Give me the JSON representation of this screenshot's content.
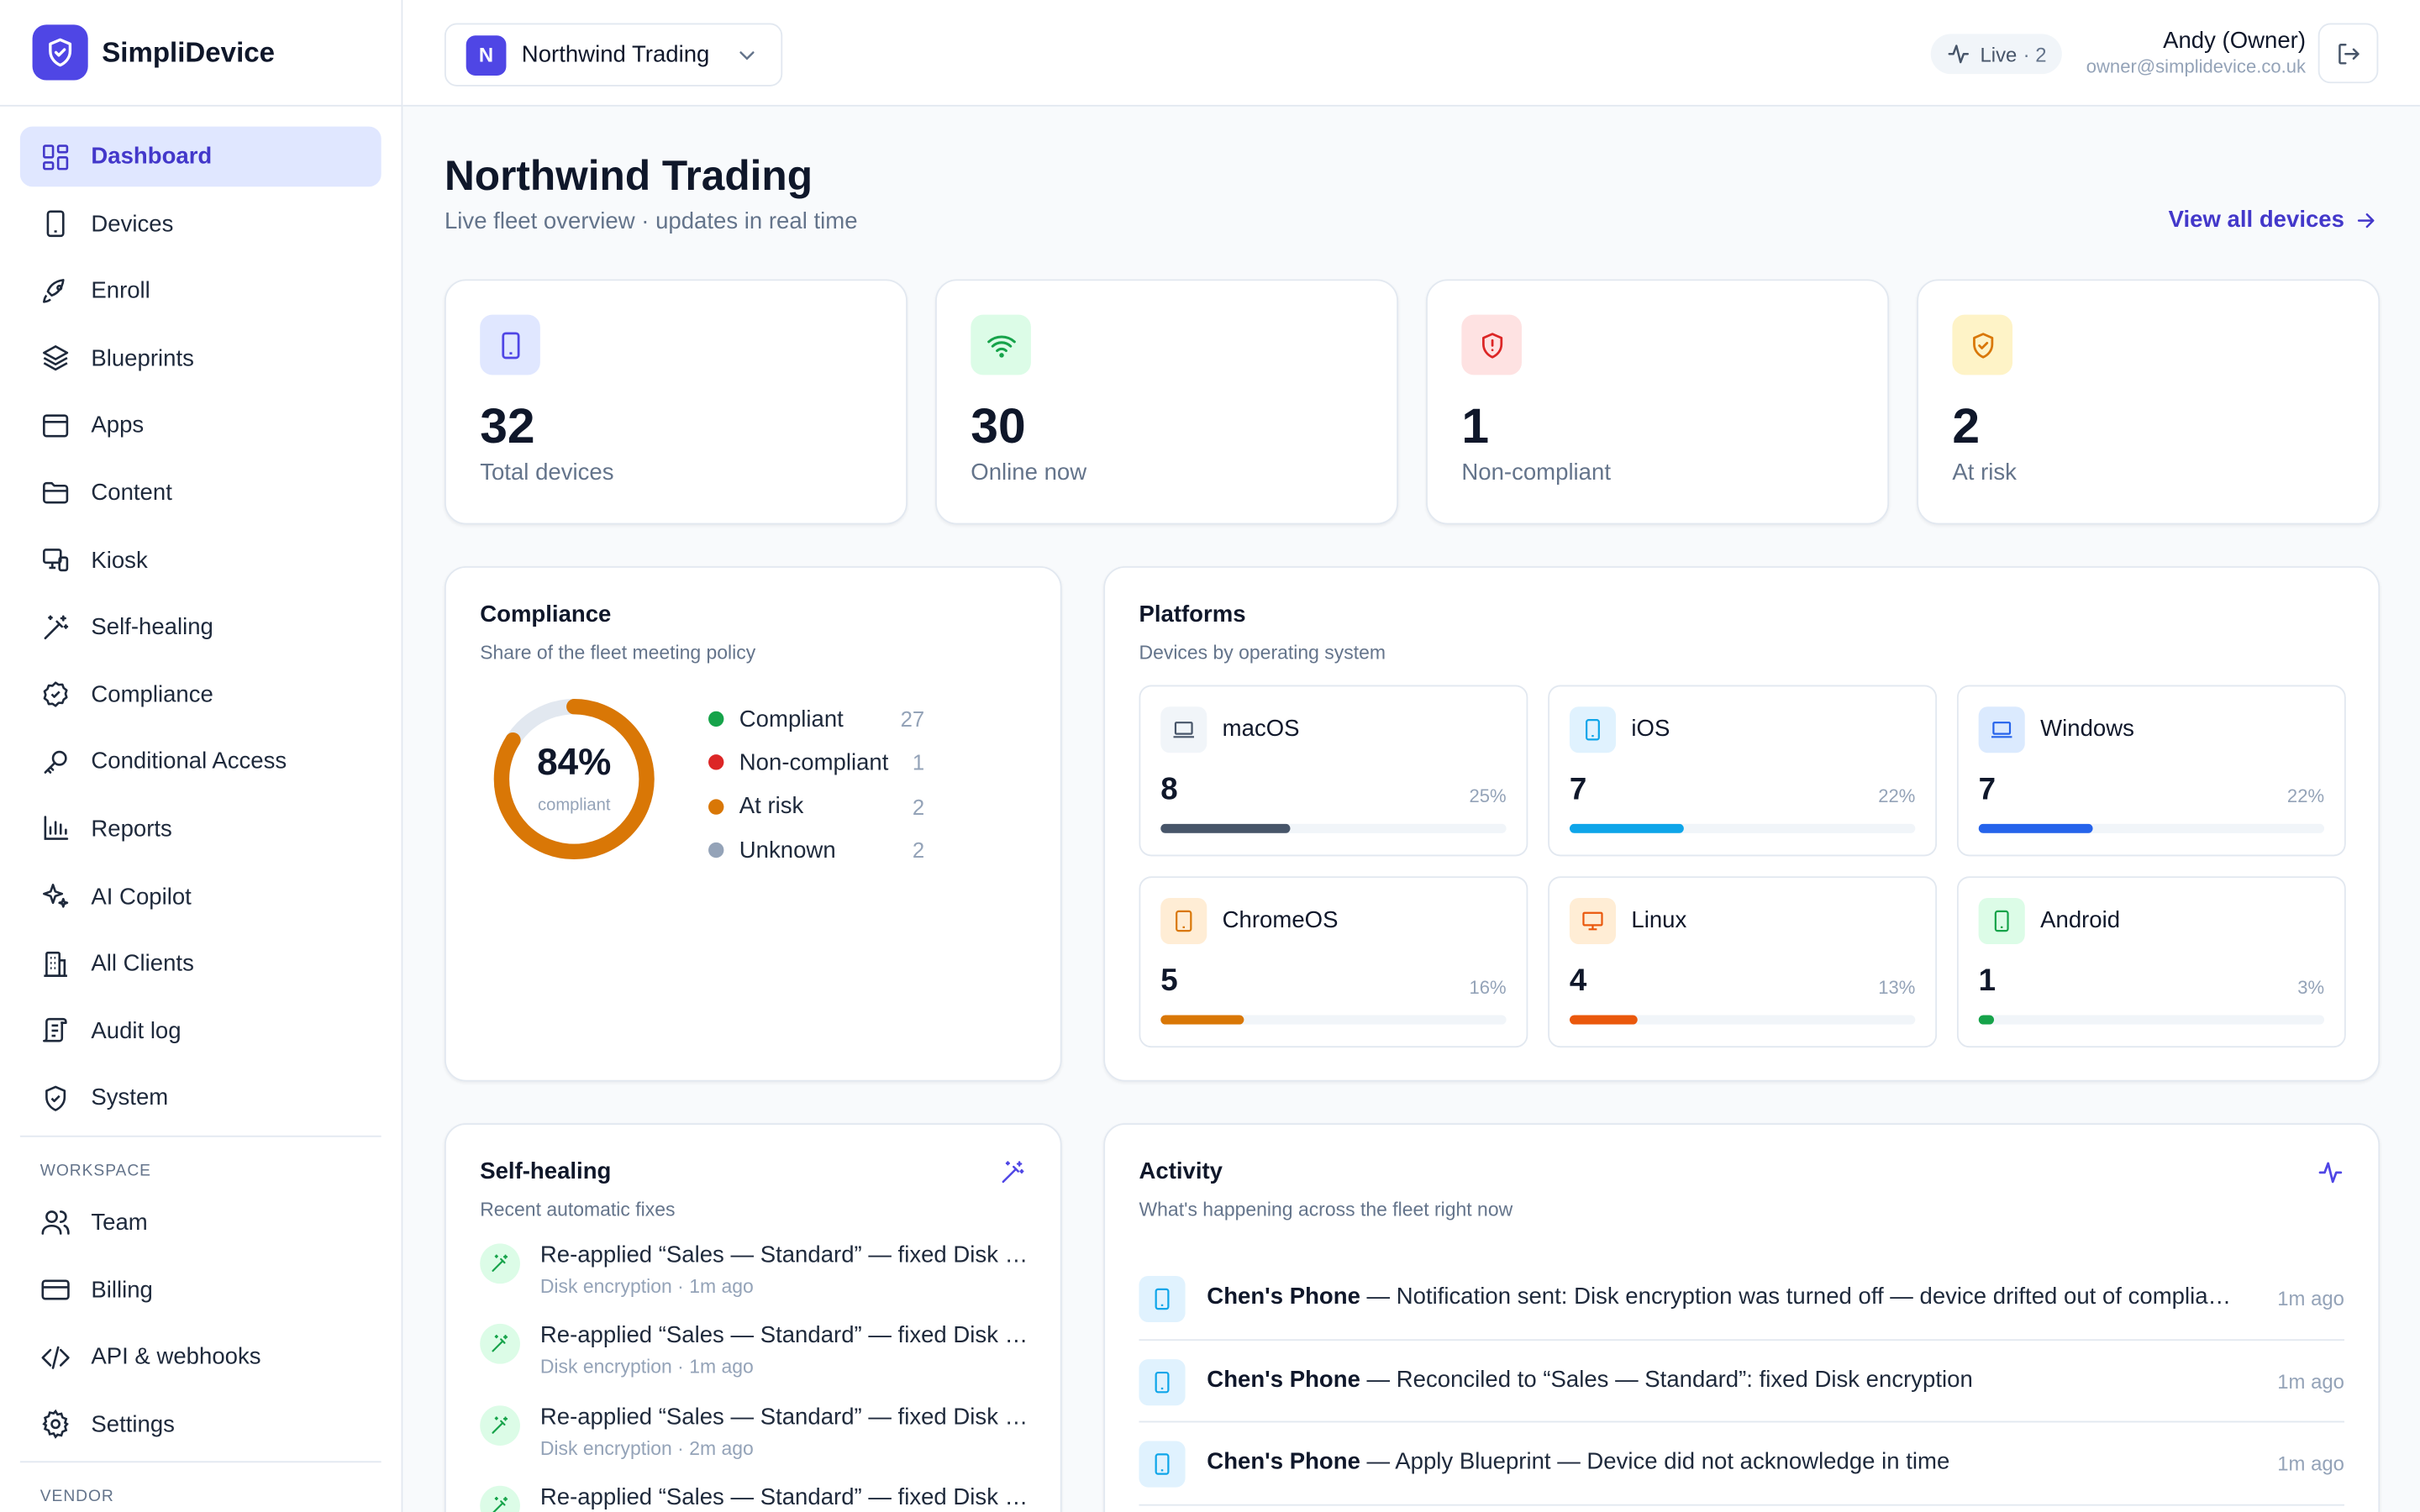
{
  "brand": {
    "name": "SimpliDevice"
  },
  "sidebar": {
    "items": [
      {
        "label": "Dashboard",
        "icon": "dashboard-icon"
      },
      {
        "label": "Devices",
        "icon": "device-icon"
      },
      {
        "label": "Enroll",
        "icon": "rocket-icon"
      },
      {
        "label": "Blueprints",
        "icon": "layers-icon"
      },
      {
        "label": "Apps",
        "icon": "app-window-icon"
      },
      {
        "label": "Content",
        "icon": "folder-icon"
      },
      {
        "label": "Kiosk",
        "icon": "kiosk-icon"
      },
      {
        "label": "Self-healing",
        "icon": "magic-wand-icon"
      },
      {
        "label": "Compliance",
        "icon": "check-badge-icon"
      },
      {
        "label": "Conditional Access",
        "icon": "key-icon"
      },
      {
        "label": "Reports",
        "icon": "bar-chart-icon"
      },
      {
        "label": "AI Copilot",
        "icon": "sparkles-icon"
      },
      {
        "label": "All Clients",
        "icon": "building-icon"
      },
      {
        "label": "Audit log",
        "icon": "scroll-icon"
      },
      {
        "label": "System",
        "icon": "shield-check-icon"
      }
    ],
    "workspace_label": "WORKSPACE",
    "workspace_items": [
      {
        "label": "Team",
        "icon": "users-icon"
      },
      {
        "label": "Billing",
        "icon": "credit-card-icon"
      },
      {
        "label": "API & webhooks",
        "icon": "code-icon"
      },
      {
        "label": "Settings",
        "icon": "gear-icon"
      }
    ],
    "vendor_label": "VENDOR"
  },
  "topbar": {
    "org_initial": "N",
    "org_name": "Northwind Trading",
    "live_label": "Live",
    "live_count": "· 2",
    "user_name": "Andy (Owner)",
    "user_email": "owner@simplidevice.co.uk"
  },
  "page": {
    "title": "Northwind Trading",
    "subtitle": "Live fleet overview · updates in real time",
    "view_all": "View all devices"
  },
  "stats": [
    {
      "value": "32",
      "label": "Total devices",
      "icon": "device-icon",
      "color": "#4f46e5",
      "bg": "#e0e7ff"
    },
    {
      "value": "30",
      "label": "Online now",
      "icon": "wifi-icon",
      "color": "#16a34a",
      "bg": "#dcfce7"
    },
    {
      "value": "1",
      "label": "Non-compliant",
      "icon": "shield-alert-icon",
      "color": "#dc2626",
      "bg": "#fee2e2"
    },
    {
      "value": "2",
      "label": "At risk",
      "icon": "shield-check-icon",
      "color": "#d97706",
      "bg": "#fef3c7"
    }
  ],
  "compliance": {
    "title": "Compliance",
    "subtitle": "Share of the fleet meeting policy",
    "percent_label": "84%",
    "percent": 84,
    "caption": "compliant",
    "legend": [
      {
        "label": "Compliant",
        "count": "27",
        "color": "#16a34a"
      },
      {
        "label": "Non-compliant",
        "count": "1",
        "color": "#dc2626"
      },
      {
        "label": "At risk",
        "count": "2",
        "color": "#d97706"
      },
      {
        "label": "Unknown",
        "count": "2",
        "color": "#94a3b8"
      }
    ]
  },
  "platforms": {
    "title": "Platforms",
    "subtitle": "Devices by operating system",
    "items": [
      {
        "name": "macOS",
        "count": "8",
        "pct_label": "25%",
        "pct": 25,
        "color": "#475569",
        "bg": "#f1f5f9",
        "icon": "laptop-icon"
      },
      {
        "name": "iOS",
        "count": "7",
        "pct_label": "22%",
        "pct": 22,
        "color": "#0ea5e9",
        "bg": "#e0f2fe",
        "icon": "phone-icon"
      },
      {
        "name": "Windows",
        "count": "7",
        "pct_label": "22%",
        "pct": 22,
        "color": "#2563eb",
        "bg": "#dbeafe",
        "icon": "laptop-icon"
      },
      {
        "name": "ChromeOS",
        "count": "5",
        "pct_label": "16%",
        "pct": 16,
        "color": "#d97706",
        "bg": "#ffedd5",
        "icon": "tablet-icon"
      },
      {
        "name": "Linux",
        "count": "4",
        "pct_label": "13%",
        "pct": 13,
        "color": "#ea580c",
        "bg": "#ffedd5",
        "icon": "monitor-icon"
      },
      {
        "name": "Android",
        "count": "1",
        "pct_label": "3%",
        "pct": 3,
        "color": "#16a34a",
        "bg": "#dcfce7",
        "icon": "phone-icon"
      }
    ]
  },
  "selfhealing": {
    "title": "Self-healing",
    "subtitle": "Recent automatic fixes",
    "items": [
      {
        "title": "Re-applied “Sales — Standard” — fixed Disk encryption",
        "meta": "Disk encryption · 1m ago"
      },
      {
        "title": "Re-applied “Sales — Standard” — fixed Disk encryption",
        "meta": "Disk encryption · 1m ago"
      },
      {
        "title": "Re-applied “Sales — Standard” — fixed Disk encryption",
        "meta": "Disk encryption · 2m ago"
      },
      {
        "title": "Re-applied “Sales — Standard” — fixed Disk encryption",
        "meta": ""
      }
    ]
  },
  "activity": {
    "title": "Activity",
    "subtitle": "What's happening across the fleet right now",
    "items": [
      {
        "device": "Chen's Phone",
        "text": " — Notification sent: Disk encryption was turned off — device drifted out of compliance",
        "time": "1m ago"
      },
      {
        "device": "Chen's Phone",
        "text": " — Reconciled to “Sales — Standard”: fixed Disk encryption",
        "time": "1m ago"
      },
      {
        "device": "Chen's Phone",
        "text": " — Apply Blueprint — Device did not acknowledge in time",
        "time": "1m ago"
      }
    ]
  }
}
